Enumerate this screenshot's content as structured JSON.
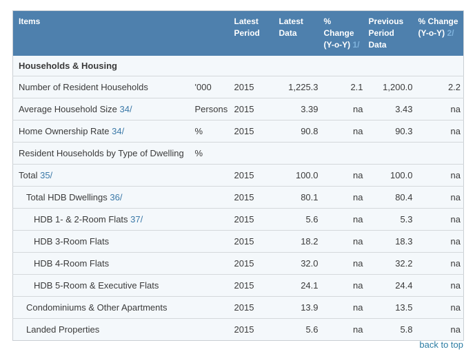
{
  "colors": {
    "header_bg": "#4e80ad",
    "header_text": "#ffffff",
    "header_footnote_link": "#7fb2dc",
    "row_bg": "#f4f8fb",
    "row_border": "#d4d8db",
    "outer_border": "#c9ced3",
    "text": "#3a3a3a",
    "link": "#3b79a8",
    "back_to_top": "#2b7ca3",
    "page_bg": "#ffffff"
  },
  "table": {
    "header": {
      "items_label": "Items",
      "cols": [
        {
          "label": "Latest Period",
          "footnote": ""
        },
        {
          "label": "Latest Data",
          "footnote": ""
        },
        {
          "label": "% Change (Y-o-Y)",
          "footnote": "1/"
        },
        {
          "label": "Previous Period Data",
          "footnote": ""
        },
        {
          "label": "% Change (Y-o-Y)",
          "footnote": "2/"
        }
      ]
    },
    "section_title": "Households & Housing",
    "rows": [
      {
        "item": "Number of Resident Households",
        "footnote": "",
        "indent": 0,
        "unit": "'000",
        "period": "2015",
        "latest": "1,225.3",
        "change1": "2.1",
        "previous": "1,200.0",
        "change2": "2.2"
      },
      {
        "item": "Average Household Size",
        "footnote": "34/",
        "indent": 0,
        "unit": "Persons",
        "period": "2015",
        "latest": "3.39",
        "change1": "na",
        "previous": "3.43",
        "change2": "na"
      },
      {
        "item": "Home Ownership Rate",
        "footnote": "34/",
        "indent": 0,
        "unit": "%",
        "period": "2015",
        "latest": "90.8",
        "change1": "na",
        "previous": "90.3",
        "change2": "na"
      },
      {
        "item": "Resident Households by Type of Dwelling",
        "footnote": "",
        "indent": 0,
        "unit": "%",
        "period": "",
        "latest": "",
        "change1": "",
        "previous": "",
        "change2": ""
      },
      {
        "item": "Total",
        "footnote": "35/",
        "indent": 0,
        "unit": "",
        "period": "2015",
        "latest": "100.0",
        "change1": "na",
        "previous": "100.0",
        "change2": "na"
      },
      {
        "item": "Total HDB Dwellings",
        "footnote": "36/",
        "indent": 1,
        "unit": "",
        "period": "2015",
        "latest": "80.1",
        "change1": "na",
        "previous": "80.4",
        "change2": "na"
      },
      {
        "item": "HDB 1- & 2-Room Flats",
        "footnote": "37/",
        "indent": 2,
        "unit": "",
        "period": "2015",
        "latest": "5.6",
        "change1": "na",
        "previous": "5.3",
        "change2": "na"
      },
      {
        "item": "HDB 3-Room Flats",
        "footnote": "",
        "indent": 2,
        "unit": "",
        "period": "2015",
        "latest": "18.2",
        "change1": "na",
        "previous": "18.3",
        "change2": "na"
      },
      {
        "item": "HDB 4-Room Flats",
        "footnote": "",
        "indent": 2,
        "unit": "",
        "period": "2015",
        "latest": "32.0",
        "change1": "na",
        "previous": "32.2",
        "change2": "na"
      },
      {
        "item": "HDB 5-Room & Executive Flats",
        "footnote": "",
        "indent": 2,
        "unit": "",
        "period": "2015",
        "latest": "24.1",
        "change1": "na",
        "previous": "24.4",
        "change2": "na"
      },
      {
        "item": "Condominiums & Other Apartments",
        "footnote": "",
        "indent": 1,
        "unit": "",
        "period": "2015",
        "latest": "13.9",
        "change1": "na",
        "previous": "13.5",
        "change2": "na"
      },
      {
        "item": "Landed Properties",
        "footnote": "",
        "indent": 1,
        "unit": "",
        "period": "2015",
        "latest": "5.6",
        "change1": "na",
        "previous": "5.8",
        "change2": "na"
      }
    ]
  },
  "footer": {
    "back_to_top_label": "back to top"
  }
}
